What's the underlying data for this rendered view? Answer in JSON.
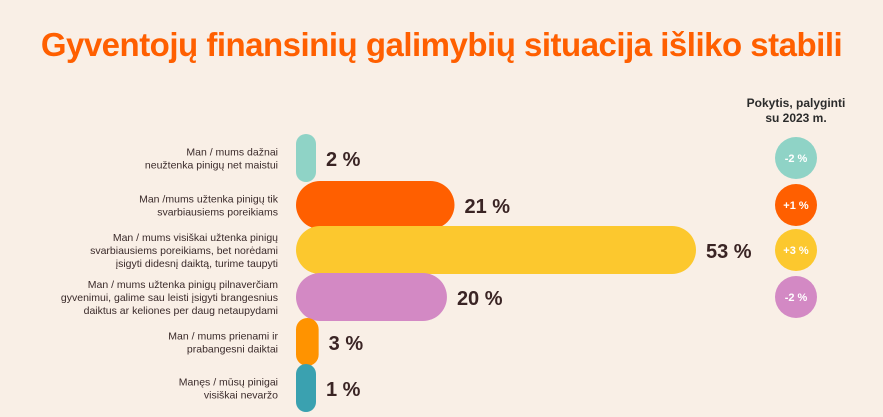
{
  "title": "Gyventojų finansinių galimybių situacija išliko stabili",
  "change_header": [
    "Pokytis, palyginti",
    "su 2023 m."
  ],
  "chart_data": {
    "type": "bar",
    "orientation": "horizontal",
    "title": "Gyventojų finansinių galimybių situacija išliko stabili",
    "unit": "%",
    "xlim": [
      0,
      53
    ],
    "categories": [
      [
        "Man / mums dažnai",
        "neužtenka pinigų net maistui"
      ],
      [
        "Man /mums užtenka pinigų tik",
        "svarbiausiems poreikiams"
      ],
      [
        "Man / mums visiškai užtenka pinigų",
        "svarbiausiems poreikiams, bet norėdami",
        "įsigyti didesnį daiktą, turime taupyti"
      ],
      [
        "Man / mums užtenka pinigų pilnaverčiam",
        "gyvenimui, galime sau leisti įsigyti brangesnius",
        "daiktus ar keliones per daug netaupydami"
      ],
      [
        "Man / mums prienami ir",
        "prabangesni daiktai"
      ],
      [
        "Manęs / mūsų pinigai",
        "visiškai nevaržo"
      ]
    ],
    "values": [
      2,
      21,
      53,
      20,
      3,
      1
    ],
    "value_labels": [
      "2 %",
      "21 %",
      "53 %",
      "20 %",
      "3 %",
      "1 %"
    ],
    "change_labels": [
      "-2 %",
      "+1 %",
      "+3 %",
      "-2 %",
      null,
      null
    ],
    "colors": [
      "#8fd3c6",
      "#ff5f00",
      "#fcc82e",
      "#d389c4",
      "#ff9300",
      "#3aa1b0"
    ],
    "change_colors": [
      "#8fd3c6",
      "#ff5f00",
      "#fcc82e",
      "#d389c4"
    ],
    "grid": false,
    "legend": "none"
  }
}
